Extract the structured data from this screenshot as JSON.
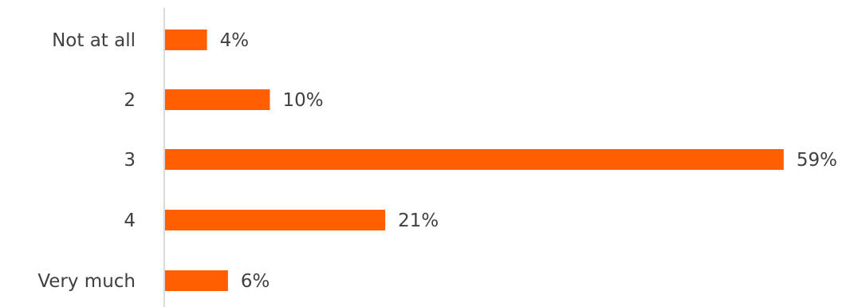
{
  "chart_data": {
    "type": "bar",
    "orientation": "horizontal",
    "categories": [
      "Not at all",
      "2",
      "3",
      "4",
      "Very much"
    ],
    "values": [
      4,
      10,
      59,
      21,
      6
    ],
    "value_labels": [
      "4%",
      "10%",
      "59%",
      "21%",
      "6%"
    ],
    "unit": "%",
    "title": "",
    "xlabel": "",
    "ylabel": "",
    "grid": false,
    "legend": "none",
    "bar_color": "#ff5f00",
    "axis_color": "#d9d9d9",
    "text_color": "#404040"
  }
}
